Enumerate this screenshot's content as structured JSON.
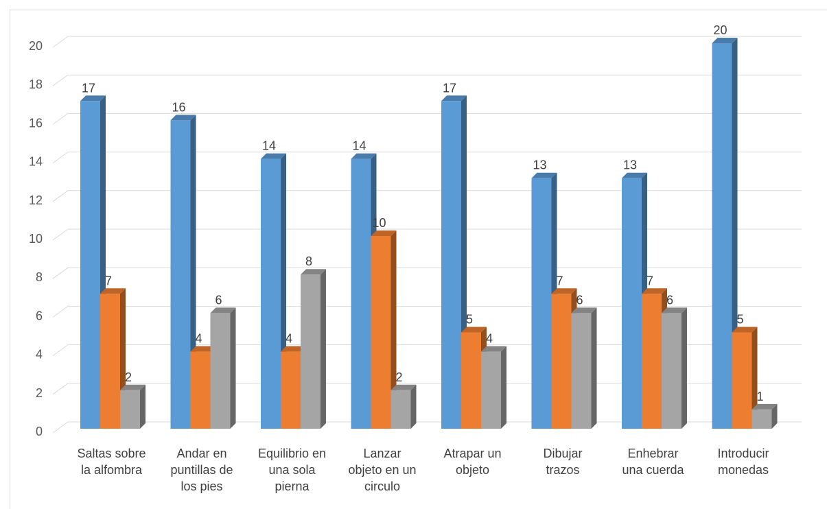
{
  "chart_data": {
    "type": "bar",
    "style": "3d-clustered-column",
    "categories": [
      [
        "Saltas sobre",
        "la alfombra"
      ],
      [
        "Andar en",
        "puntillas de",
        "los pies"
      ],
      [
        "Equilibrio en",
        "una sola",
        "pierna"
      ],
      [
        "Lanzar",
        "objeto en un",
        "circulo"
      ],
      [
        "Atrapar un",
        "objeto"
      ],
      [
        "Dibujar",
        "trazos"
      ],
      [
        "Enhebrar",
        "una cuerda"
      ],
      [
        "Introducir",
        "monedas"
      ]
    ],
    "series": [
      {
        "values": [
          17,
          16,
          14,
          14,
          17,
          13,
          13,
          20
        ],
        "color": "#5b9bd5"
      },
      {
        "values": [
          7,
          4,
          4,
          10,
          5,
          7,
          7,
          5
        ],
        "color": "#ed7d31"
      },
      {
        "values": [
          2,
          6,
          8,
          2,
          4,
          6,
          6,
          1
        ],
        "color": "#a5a5a5"
      }
    ],
    "yticks": [
      "0",
      "2",
      "4",
      "6",
      "8",
      "10",
      "12",
      "14",
      "16",
      "18",
      "20"
    ],
    "ylim": [
      0,
      20
    ],
    "grid": true,
    "data_labels": true,
    "title": "",
    "xlabel": "",
    "ylabel": ""
  }
}
